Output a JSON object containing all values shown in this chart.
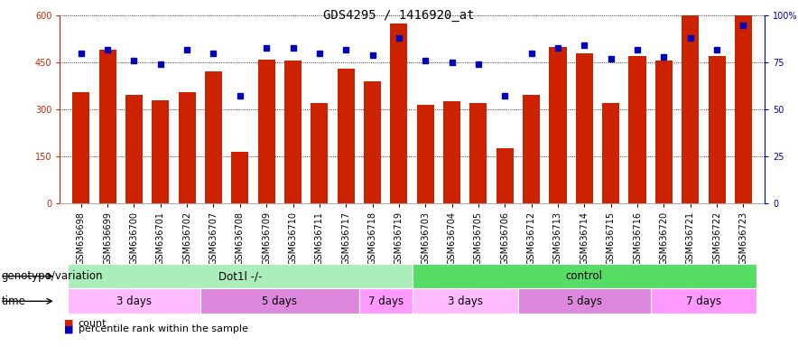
{
  "title": "GDS4295 / 1416920_at",
  "samples": [
    "GSM636698",
    "GSM636699",
    "GSM636700",
    "GSM636701",
    "GSM636702",
    "GSM636707",
    "GSM636708",
    "GSM636709",
    "GSM636710",
    "GSM636711",
    "GSM636717",
    "GSM636718",
    "GSM636719",
    "GSM636703",
    "GSM636704",
    "GSM636705",
    "GSM636706",
    "GSM636712",
    "GSM636713",
    "GSM636714",
    "GSM636715",
    "GSM636716",
    "GSM636720",
    "GSM636721",
    "GSM636722",
    "GSM636723"
  ],
  "counts": [
    355,
    490,
    345,
    330,
    355,
    420,
    165,
    460,
    455,
    320,
    430,
    390,
    575,
    315,
    325,
    320,
    175,
    345,
    500,
    480,
    320,
    470,
    455,
    600,
    470,
    600
  ],
  "percentile": [
    80,
    82,
    76,
    74,
    82,
    80,
    57,
    83,
    83,
    80,
    82,
    79,
    88,
    76,
    75,
    74,
    57,
    80,
    83,
    84,
    77,
    82,
    78,
    88,
    82,
    95
  ],
  "ylim_left": [
    0,
    600
  ],
  "ylim_right": [
    0,
    100
  ],
  "yticks_left": [
    0,
    150,
    300,
    450,
    600
  ],
  "yticks_right": [
    0,
    25,
    50,
    75,
    100
  ],
  "bar_color": "#cc2200",
  "dot_color": "#0000bb",
  "bg_color": "#ffffff",
  "plot_bg": "#ffffff",
  "genotype_groups": [
    {
      "label": "Dot1l -/-",
      "start": 0,
      "end": 13,
      "color": "#aaeebb"
    },
    {
      "label": "control",
      "start": 13,
      "end": 26,
      "color": "#55dd66"
    }
  ],
  "time_groups": [
    {
      "label": "3 days",
      "start": 0,
      "end": 5,
      "color": "#ffbbff"
    },
    {
      "label": "5 days",
      "start": 5,
      "end": 11,
      "color": "#dd88dd"
    },
    {
      "label": "7 days",
      "start": 11,
      "end": 13,
      "color": "#ff99ff"
    },
    {
      "label": "3 days",
      "start": 13,
      "end": 17,
      "color": "#ffbbff"
    },
    {
      "label": "5 days",
      "start": 17,
      "end": 22,
      "color": "#dd88dd"
    },
    {
      "label": "7 days",
      "start": 22,
      "end": 26,
      "color": "#ff99ff"
    }
  ],
  "legend_count_label": "count",
  "legend_pct_label": "percentile rank within the sample",
  "genotype_label": "genotype/variation",
  "time_label": "time",
  "title_fontsize": 10,
  "tick_fontsize": 7,
  "annotation_fontsize": 8.5,
  "legend_fontsize": 8
}
